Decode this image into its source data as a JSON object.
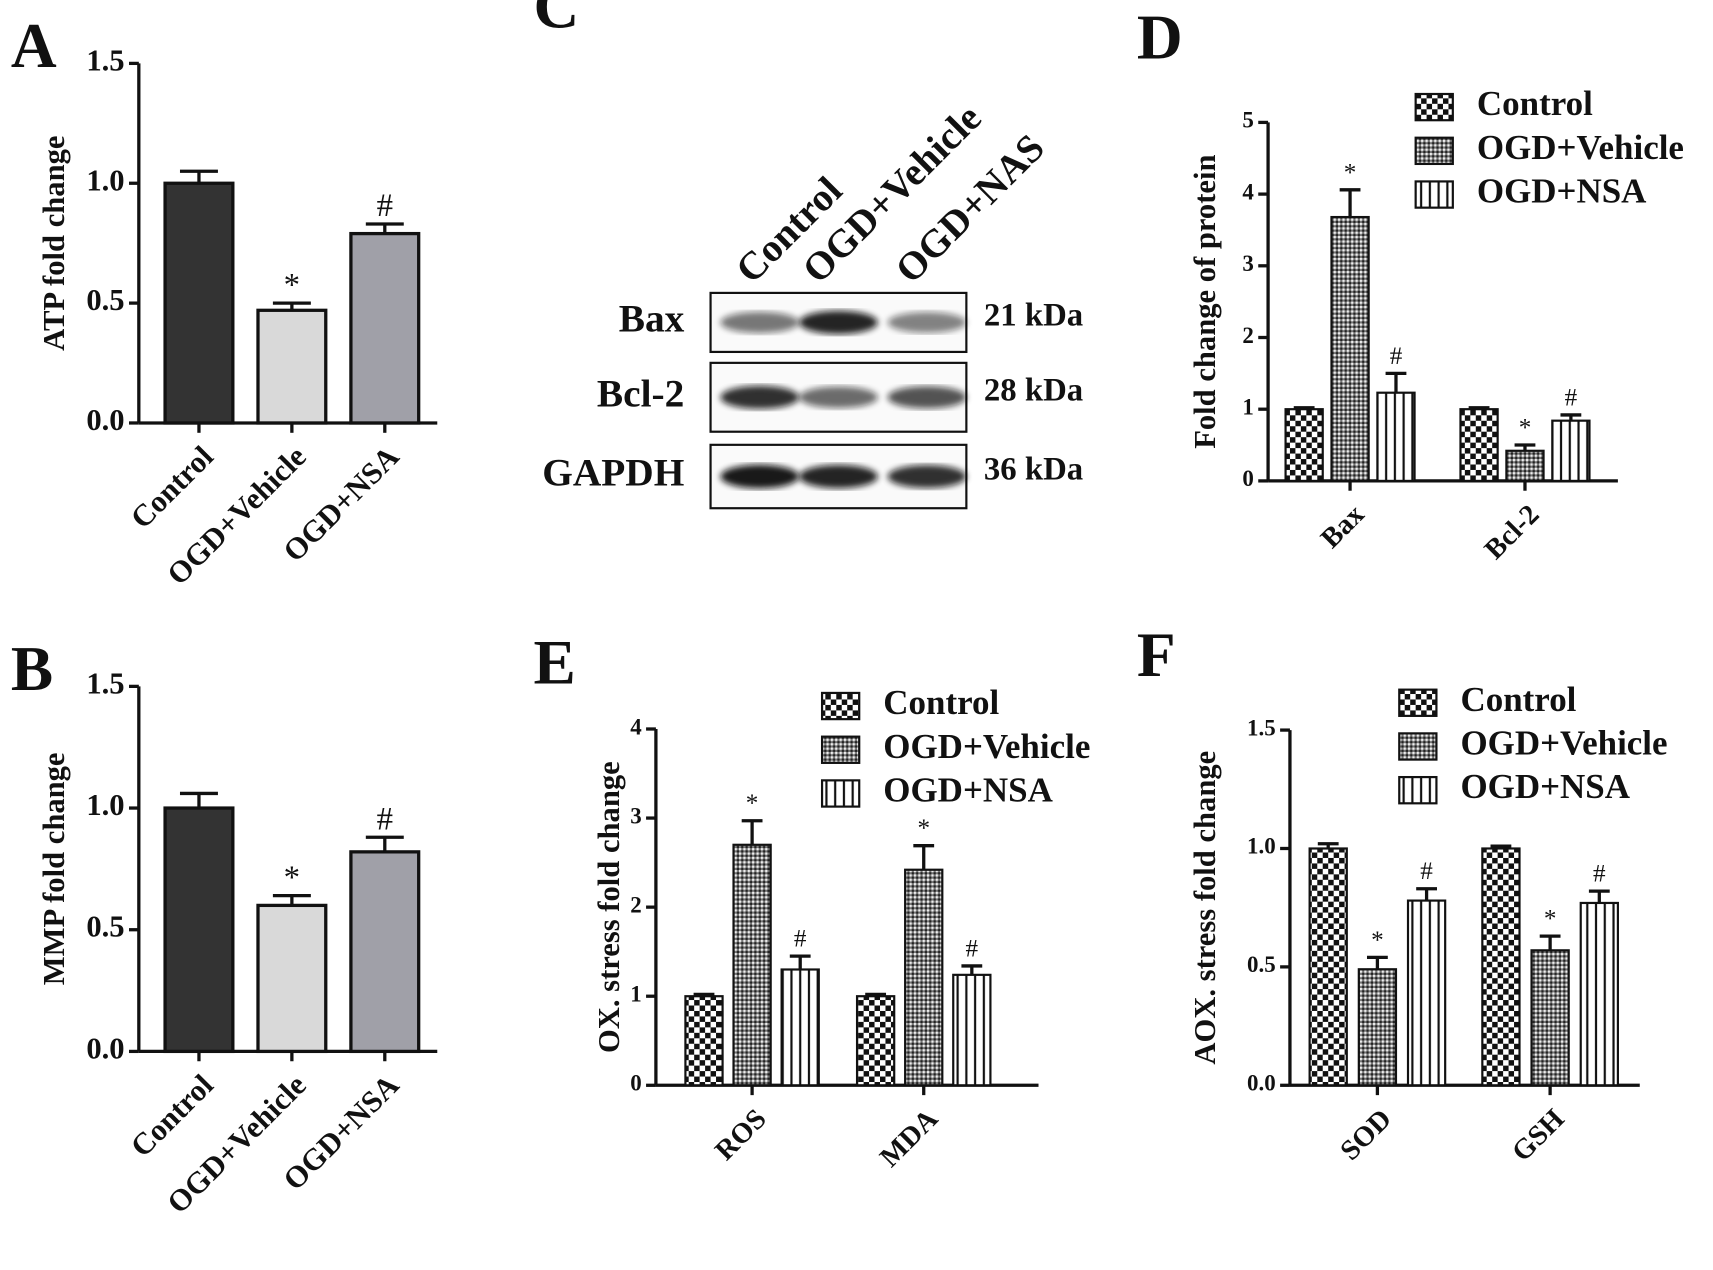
{
  "chart_data": [
    {
      "type": "bar",
      "label": "A",
      "ylabel": "ATP fold change",
      "categories": [
        "Control",
        "OGD+Vehicle",
        "OGD+NSA"
      ],
      "values": [
        1.0,
        0.47,
        0.79
      ],
      "errors": [
        0.05,
        0.03,
        0.04
      ],
      "annotations": [
        null,
        "*",
        "#"
      ],
      "colors": [
        "#333333",
        "#d9d9d9",
        "#a0a0a8"
      ],
      "ylim": [
        0,
        1.5
      ],
      "yticks": [
        {
          "value": 0,
          "label": "0.0"
        },
        {
          "value": 0.5,
          "label": "0.5"
        },
        {
          "value": 1,
          "label": "1.0"
        },
        {
          "value": 1.5,
          "label": "1.5"
        }
      ]
    },
    {
      "type": "bar",
      "label": "B",
      "ylabel": "MMP fold change",
      "categories": [
        "Control",
        "OGD+Vehicle",
        "OGD+NSA"
      ],
      "values": [
        1.0,
        0.6,
        0.82
      ],
      "errors": [
        0.06,
        0.04,
        0.06
      ],
      "annotations": [
        null,
        "*",
        "#"
      ],
      "colors": [
        "#333333",
        "#d9d9d9",
        "#a0a0a8"
      ],
      "ylim": [
        0,
        1.5
      ],
      "yticks": [
        {
          "value": 0,
          "label": "0.0"
        },
        {
          "value": 0.5,
          "label": "0.5"
        },
        {
          "value": 1,
          "label": "1.0"
        },
        {
          "value": 1.5,
          "label": "1.5"
        }
      ]
    },
    {
      "type": "grouped_bar",
      "label": "D",
      "ylabel": "Fold change of protein",
      "categories": [
        "Bax",
        "Bcl-2"
      ],
      "series": [
        {
          "name": "Control",
          "pattern": "checker",
          "values": [
            1.0,
            1.0
          ],
          "errors": [
            0.02,
            0.02
          ]
        },
        {
          "name": "OGD+Vehicle",
          "pattern": "crosshatch",
          "values": [
            3.68,
            0.42
          ],
          "errors": [
            0.38,
            0.08
          ],
          "annotations": [
            "*",
            "*"
          ]
        },
        {
          "name": "OGD+NSA",
          "pattern": "vertical",
          "values": [
            1.23,
            0.84
          ],
          "errors": [
            0.27,
            0.08
          ],
          "annotations": [
            "#",
            "#"
          ]
        }
      ],
      "ylim": [
        0,
        5
      ],
      "yticks": [
        0,
        1,
        2,
        3,
        4,
        5
      ]
    },
    {
      "type": "grouped_bar",
      "label": "E",
      "ylabel": "OX. stress fold change",
      "categories": [
        "ROS",
        "MDA"
      ],
      "series": [
        {
          "name": "Control",
          "pattern": "checker",
          "values": [
            1.0,
            1.0
          ],
          "errors": [
            0.02,
            0.02
          ]
        },
        {
          "name": "OGD+Vehicle",
          "pattern": "crosshatch",
          "values": [
            2.7,
            2.42
          ],
          "errors": [
            0.27,
            0.27
          ],
          "annotations": [
            "*",
            "*"
          ]
        },
        {
          "name": "OGD+NSA",
          "pattern": "vertical",
          "values": [
            1.3,
            1.24
          ],
          "errors": [
            0.15,
            0.1
          ],
          "annotations": [
            "#",
            "#"
          ]
        }
      ],
      "ylim": [
        0,
        4
      ],
      "yticks": [
        0,
        1,
        2,
        3,
        4
      ]
    },
    {
      "type": "grouped_bar",
      "label": "F",
      "ylabel": "AOX. stress fold change",
      "categories": [
        "SOD",
        "GSH"
      ],
      "series": [
        {
          "name": "Control",
          "pattern": "checker",
          "values": [
            1.0,
            1.0
          ],
          "errors": [
            0.02,
            0.01
          ]
        },
        {
          "name": "OGD+Vehicle",
          "pattern": "crosshatch",
          "values": [
            0.49,
            0.57
          ],
          "errors": [
            0.05,
            0.06
          ],
          "annotations": [
            "*",
            "*"
          ]
        },
        {
          "name": "OGD+NSA",
          "pattern": "vertical",
          "values": [
            0.78,
            0.77
          ],
          "errors": [
            0.05,
            0.05
          ],
          "annotations": [
            "#",
            "#"
          ]
        }
      ],
      "ylim": [
        0,
        1.5
      ],
      "yticks": [
        {
          "value": 0,
          "label": "0.0"
        },
        {
          "value": 0.5,
          "label": "0.5"
        },
        {
          "value": 1,
          "label": "1.0"
        },
        {
          "value": 1.5,
          "label": "1.5"
        }
      ]
    }
  ],
  "blot": {
    "label": "C",
    "lanes": [
      "Control",
      "OGD+Vehicle",
      "OGD+NAS"
    ],
    "rows": [
      {
        "name": "Bax",
        "size": "21 kDa"
      },
      {
        "name": "Bcl-2",
        "size": "28 kDa"
      },
      {
        "name": "GAPDH",
        "size": "36 kDa"
      }
    ]
  }
}
